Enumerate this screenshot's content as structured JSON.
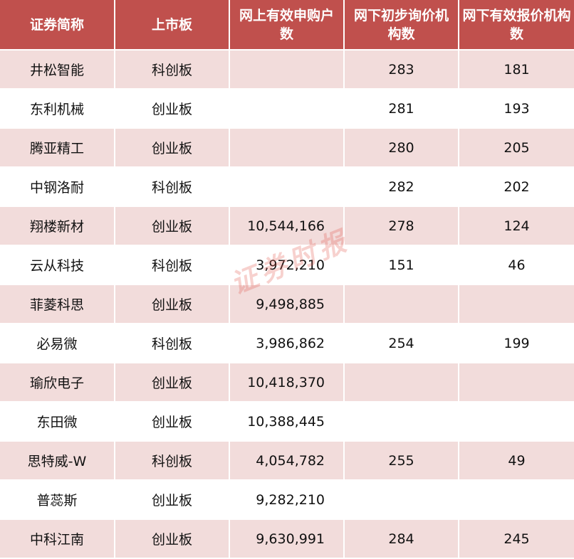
{
  "header": [
    "证券简称",
    "上市板",
    "网上有效申购户数",
    "网下初步询价机构数",
    "网下有效报价机构数"
  ],
  "rows": [
    [
      "井松智能",
      "科创板",
      "",
      "283",
      "181"
    ],
    [
      "东利机械",
      "创业板",
      "",
      "281",
      "193"
    ],
    [
      "腾亚精工",
      "创业板",
      "",
      "280",
      "205"
    ],
    [
      "中钢洛耐",
      "科创板",
      "",
      "282",
      "202"
    ],
    [
      "翔楼新材",
      "创业板",
      "10,544,166",
      "278",
      "124"
    ],
    [
      "云从科技",
      "科创板",
      "3,972,210",
      "151",
      "46"
    ],
    [
      "菲菱科思",
      "创业板",
      "9,498,885",
      "",
      ""
    ],
    [
      "必易微",
      "科创板",
      "3,986,862",
      "254",
      "199"
    ],
    [
      "瑜欣电子",
      "创业板",
      "10,418,370",
      "",
      ""
    ],
    [
      "东田微",
      "创业板",
      "10,388,445",
      "",
      ""
    ],
    [
      "思特威-W",
      "科创板",
      "4,054,782",
      "255",
      "49"
    ],
    [
      "普蕊斯",
      "创业板",
      "9,282,210",
      "",
      ""
    ],
    [
      "中科江南",
      "创业板",
      "9,630,991",
      "284",
      "245"
    ]
  ],
  "watermark": "证券时报",
  "colors": {
    "header_bg": "#c0504d",
    "stripe_bg": "#f2dcdb",
    "header_text": "#ffffff"
  }
}
